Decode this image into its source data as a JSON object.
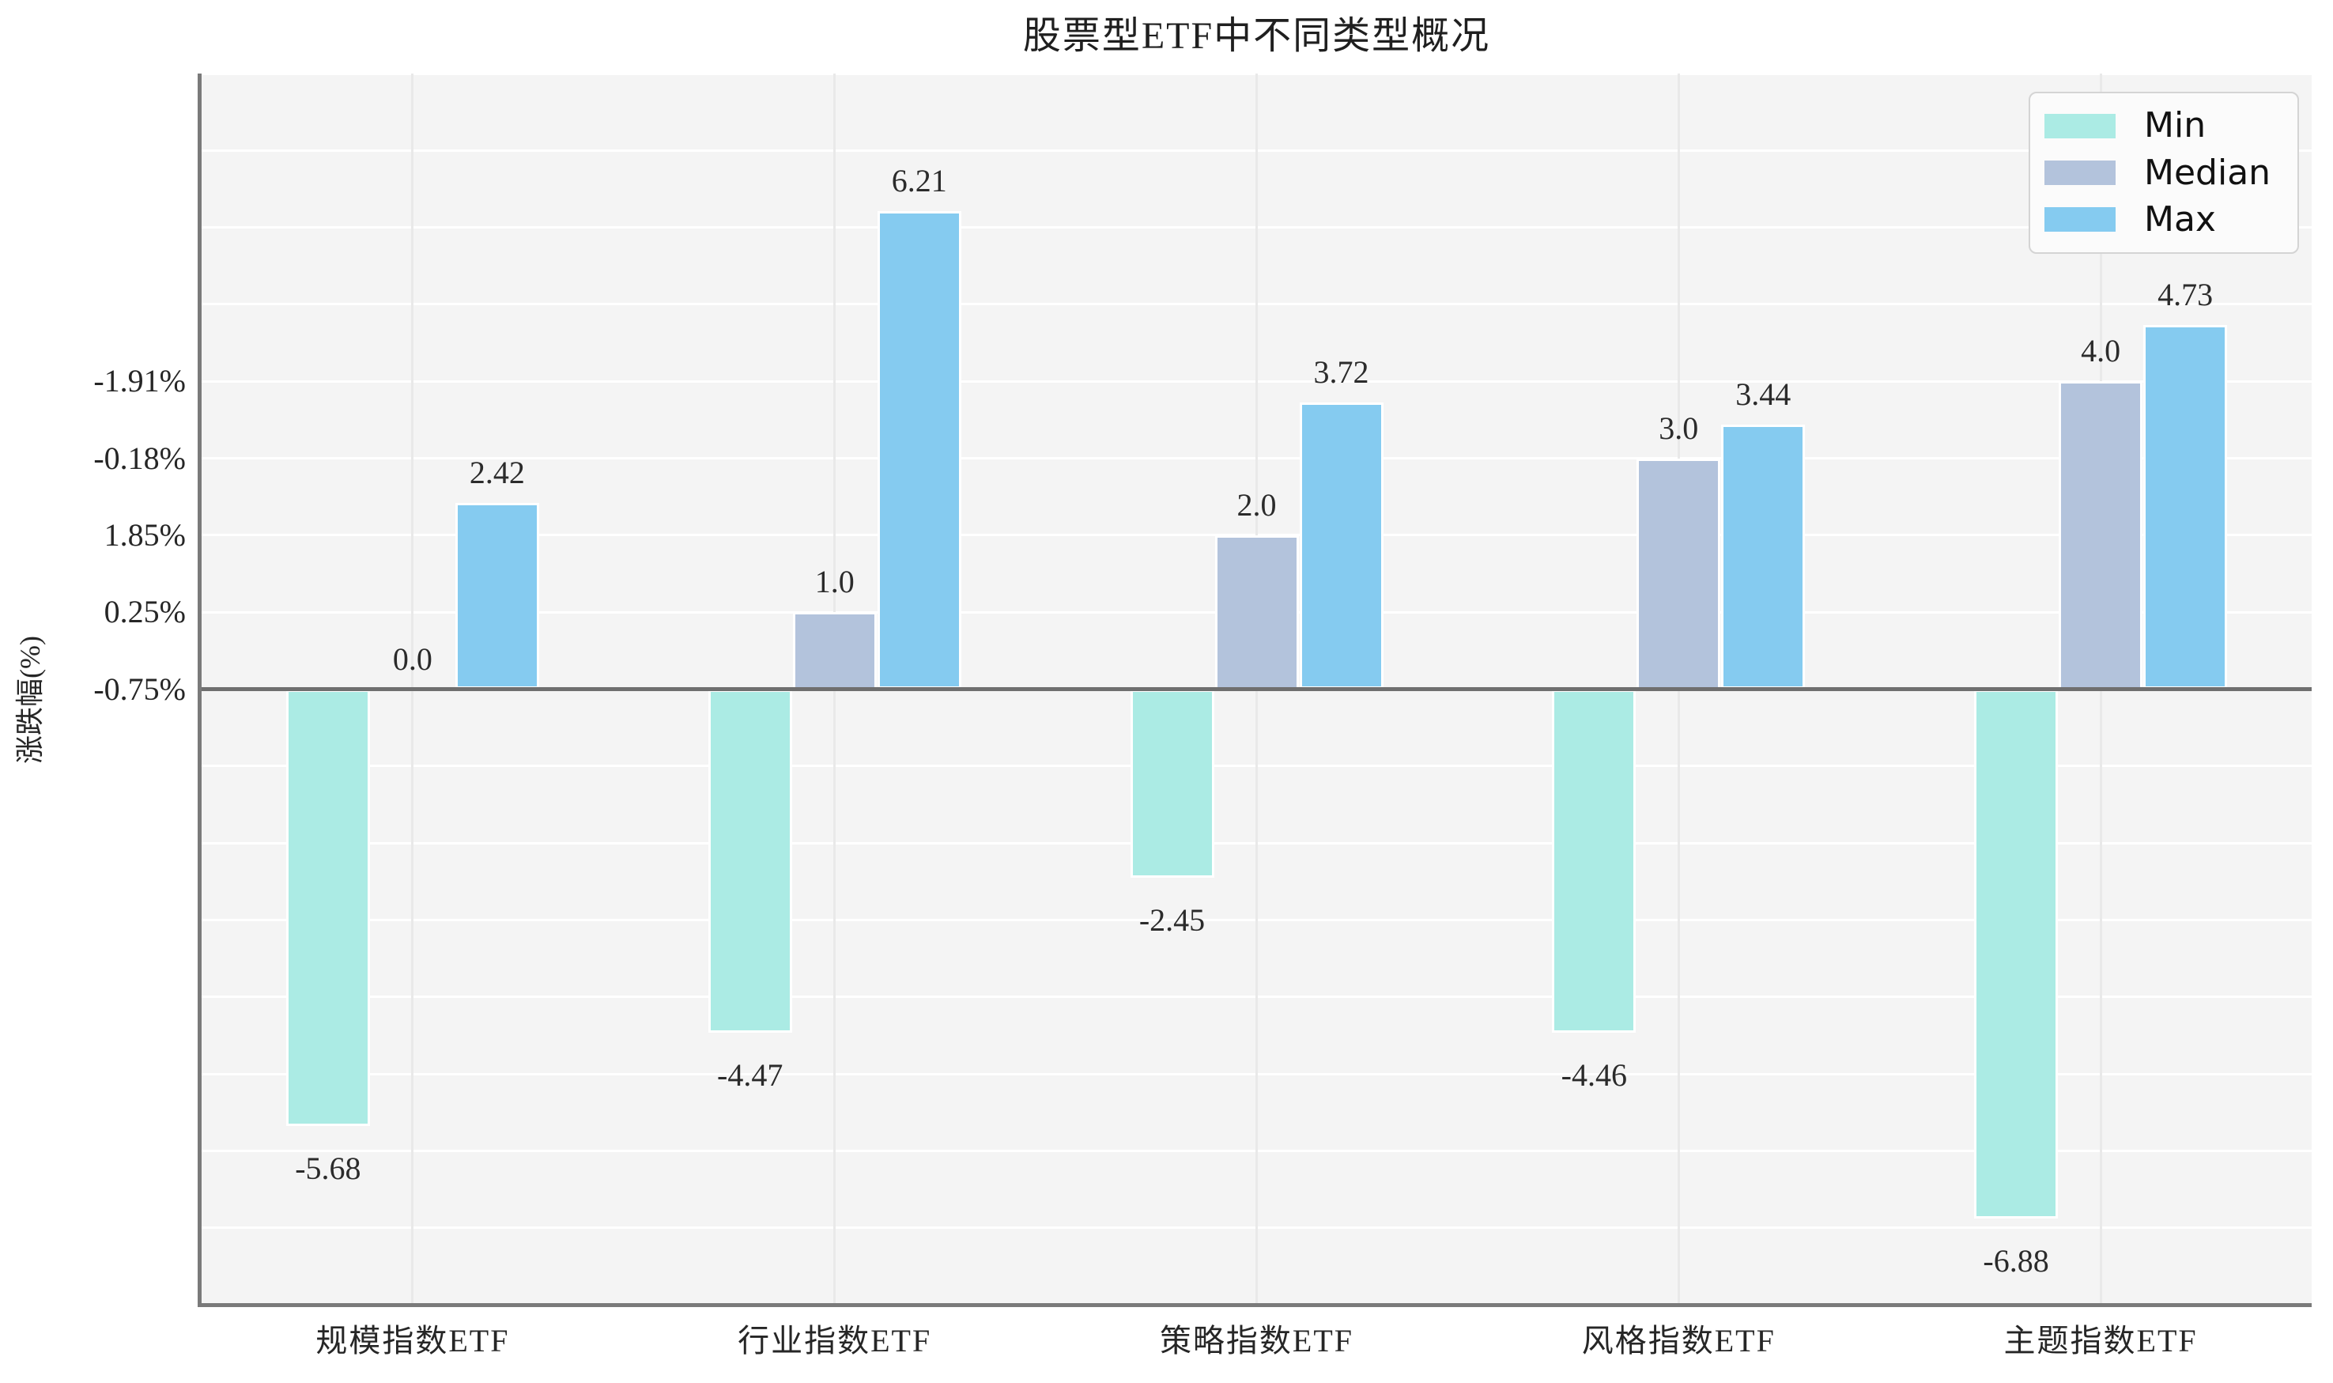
{
  "title": "股票型ETF中不同类型概况",
  "chart_data": {
    "type": "bar",
    "title": "股票型ETF中不同类型概况",
    "xlabel": "",
    "ylabel": "涨跌幅(%)",
    "categories": [
      "规模指数ETF",
      "行业指数ETF",
      "策略指数ETF",
      "风格指数ETF",
      "主题指数ETF"
    ],
    "series": [
      {
        "name": "Min",
        "color": "#abebe4",
        "values": [
          -5.68,
          -4.47,
          -2.45,
          -4.46,
          -6.88
        ],
        "labels": [
          "-5.68",
          "-4.47",
          "-2.45",
          "-4.46",
          "-6.88"
        ]
      },
      {
        "name": "Median",
        "color": "#b3c3dc",
        "values": [
          0.0,
          1.0,
          2.0,
          3.0,
          4.0
        ],
        "labels": [
          "0.0",
          "1.0",
          "2.0",
          "3.0",
          "4.0"
        ]
      },
      {
        "name": "Max",
        "color": "#85cbf0",
        "values": [
          2.42,
          6.21,
          3.72,
          3.44,
          4.73
        ],
        "labels": [
          "2.42",
          "6.21",
          "3.72",
          "3.44",
          "4.73"
        ]
      }
    ],
    "y_ticks": [
      {
        "label": "-0.75%",
        "unit": 0
      },
      {
        "label": "0.25%",
        "unit": 1
      },
      {
        "label": "1.85%",
        "unit": 2
      },
      {
        "label": "-0.18%",
        "unit": 3
      },
      {
        "label": "-1.91%",
        "unit": 4
      }
    ],
    "y_axis_units_range": [
      -8,
      8
    ],
    "grid": true,
    "legend_position": "upper right",
    "background": "#f4f4f4"
  },
  "legend": {
    "items": [
      {
        "label": "Min",
        "color": "#abebe4"
      },
      {
        "label": "Median",
        "color": "#b3c3dc"
      },
      {
        "label": "Max",
        "color": "#85cbf0"
      }
    ]
  }
}
